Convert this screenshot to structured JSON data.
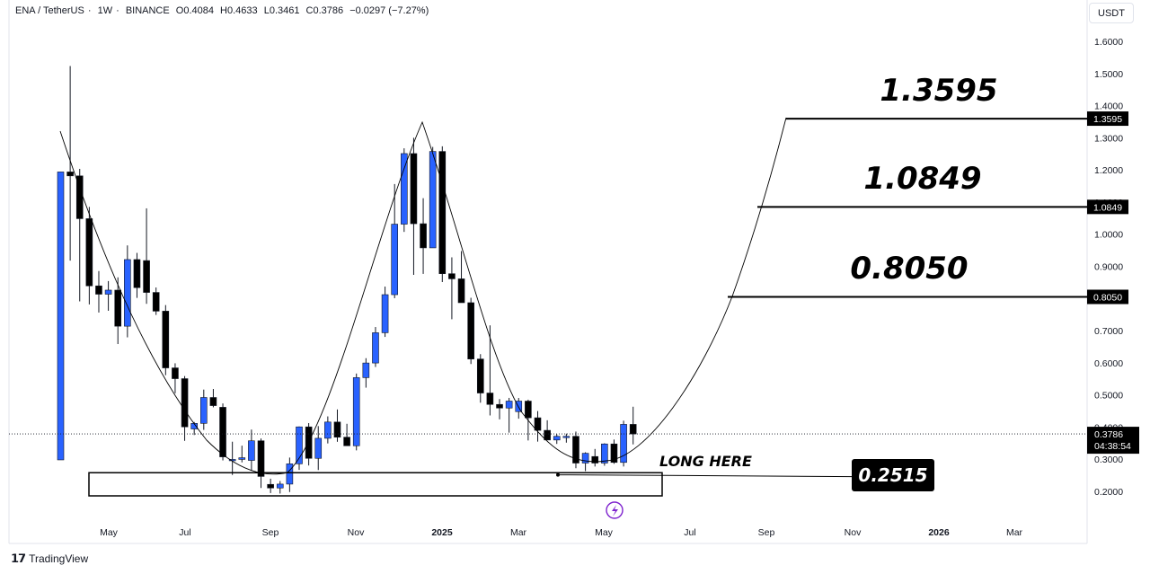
{
  "header": {
    "symbol": "ENA / TetherUS",
    "interval": "1W",
    "exchange": "BINANCE",
    "open": "O0.4084",
    "high": "H0.4633",
    "low": "L0.3461",
    "close": "C0.3786",
    "change": "−0.0297 (−7.27%)",
    "separator": "·"
  },
  "currency_label": "USDT",
  "branding": "TradingView",
  "chart_data": {
    "type": "candlestick",
    "y_axis": {
      "ticks": [
        "1.6000",
        "1.5000",
        "1.4000",
        "1.3000",
        "1.2000",
        "1.1000",
        "1.0000",
        "0.9000",
        "0.8000",
        "0.7000",
        "0.6000",
        "0.5000",
        "0.4000",
        "0.3000",
        "0.2000"
      ],
      "range": [
        0.14,
        1.66
      ]
    },
    "x_axis": {
      "labels": [
        "May",
        "Jul",
        "Sep",
        "Nov",
        "2025",
        "Mar",
        "May",
        "Jul",
        "Sep",
        "Nov",
        "2026",
        "Mar"
      ]
    },
    "candles": [
      [
        0.2979,
        1.1937,
        0.2979,
        1.1937
      ],
      [
        1.1937,
        1.5232,
        0.9179,
        1.1814
      ],
      [
        1.1814,
        1.2033,
        0.7909,
        1.0483
      ],
      [
        1.0483,
        1.0849,
        0.7815,
        0.8392
      ],
      [
        0.8392,
        0.8854,
        0.7563,
        0.8133
      ],
      [
        0.8133,
        0.8542,
        0.7618,
        0.826
      ],
      [
        0.826,
        0.8658,
        0.6582,
        0.7138
      ],
      [
        0.7138,
        0.9651,
        0.6791,
        0.9211
      ],
      [
        0.9211,
        0.9418,
        0.8018,
        0.8337
      ],
      [
        0.9179,
        1.0804,
        0.7834,
        0.8188
      ],
      [
        0.8188,
        0.8342,
        0.7488,
        0.7606
      ],
      [
        0.7606,
        0.7795,
        0.5614,
        0.5841
      ],
      [
        0.5841,
        0.5984,
        0.5051,
        0.5506
      ],
      [
        0.5506,
        0.5586,
        0.3571,
        0.4006
      ],
      [
        0.3941,
        0.4158,
        0.3753,
        0.4115
      ],
      [
        0.4115,
        0.5166,
        0.3913,
        0.492
      ],
      [
        0.492,
        0.5185,
        0.4615,
        0.4667
      ],
      [
        0.4615,
        0.4735,
        0.2963,
        0.3073
      ],
      [
        0.2963,
        0.3545,
        0.251,
        0.2994
      ],
      [
        0.2994,
        0.3422,
        0.2902,
        0.3046
      ],
      [
        0.2963,
        0.3922,
        0.2653,
        0.3573
      ],
      [
        0.3573,
        0.3645,
        0.2105,
        0.2464
      ],
      [
        0.2217,
        0.2394,
        0.1947,
        0.2105
      ],
      [
        0.2105,
        0.2322,
        0.1932,
        0.2226
      ],
      [
        0.2226,
        0.3051,
        0.1979,
        0.2857
      ],
      [
        0.2857,
        0.402,
        0.2666,
        0.4006
      ],
      [
        0.4006,
        0.4124,
        0.2805,
        0.3027
      ],
      [
        0.3027,
        0.403,
        0.2664,
        0.3651
      ],
      [
        0.3651,
        0.4332,
        0.3491,
        0.4157
      ],
      [
        0.4157,
        0.4548,
        0.3542,
        0.3685
      ],
      [
        0.3685,
        0.4102,
        0.3429,
        0.3418
      ],
      [
        0.3418,
        0.5665,
        0.3275,
        0.5538
      ],
      [
        0.5538,
        0.6143,
        0.5226,
        0.5993
      ],
      [
        0.5993,
        0.7113,
        0.5869,
        0.6935
      ],
      [
        0.6935,
        0.837,
        0.6804,
        0.8119
      ],
      [
        0.8119,
        1.156,
        0.8009,
        1.0312
      ],
      [
        1.0312,
        1.2672,
        1.0071,
        1.2508
      ],
      [
        1.2508,
        1.3,
        0.8736,
        1.0326
      ],
      [
        1.0326,
        1.112,
        0.8765,
        0.9575
      ],
      [
        0.9575,
        1.2715,
        0.9575,
        1.2574
      ],
      [
        1.2574,
        1.2734,
        0.851,
        0.8771
      ],
      [
        0.8771,
        0.928,
        0.7354,
        0.8611
      ],
      [
        0.8611,
        0.9474,
        0.7983,
        0.7869
      ],
      [
        0.7869,
        0.8022,
        0.5961,
        0.6117
      ],
      [
        0.6117,
        0.6269,
        0.4758,
        0.5059
      ],
      [
        0.5059,
        0.7164,
        0.4361,
        0.4704
      ],
      [
        0.4704,
        0.4872,
        0.424,
        0.4592
      ],
      [
        0.4592,
        0.4908,
        0.3826,
        0.4808
      ],
      [
        0.448,
        0.4905,
        0.4261,
        0.4808
      ],
      [
        0.4808,
        0.4852,
        0.3583,
        0.4289
      ],
      [
        0.4289,
        0.4496,
        0.3547,
        0.3898
      ],
      [
        0.3898,
        0.4212,
        0.359,
        0.3598
      ],
      [
        0.3598,
        0.3777,
        0.3476,
        0.3713
      ],
      [
        0.3713,
        0.3796,
        0.3515,
        0.3713
      ],
      [
        0.3713,
        0.386,
        0.272,
        0.288
      ],
      [
        0.288,
        0.3216,
        0.263,
        0.3184
      ],
      [
        0.3084,
        0.3319,
        0.2773,
        0.288
      ],
      [
        0.288,
        0.3496,
        0.2797,
        0.3475
      ],
      [
        0.3475,
        0.3612,
        0.2857,
        0.29
      ],
      [
        0.29,
        0.4198,
        0.2773,
        0.4084
      ],
      [
        0.4084,
        0.4633,
        0.3461,
        0.3786
      ]
    ],
    "last_price": "0.3786",
    "countdown": "04:38:54",
    "target_levels": [
      "1.3595",
      "1.0849",
      "0.8050"
    ],
    "support_level": "0.2515",
    "support_zone": [
      0.186,
      0.258
    ],
    "annotation": "LONG HERE",
    "colors": {
      "up": "#2962ff",
      "down": "#000000",
      "wick": "#131722",
      "line": "#000000",
      "accent_badge": "#7e22ce"
    }
  }
}
